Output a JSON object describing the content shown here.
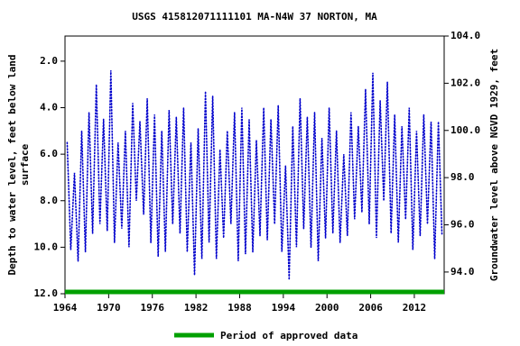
{
  "chart_data": {
    "type": "line",
    "title": "USGS 415812071111101 MA-N4W   37 NORTON, MA",
    "ylabel": [
      "Depth to water level, feet below land",
      "surface"
    ],
    "y2label": "Groundwater level above NGVD 1929, feet",
    "x": [
      1964.3,
      1964.8,
      1965.3,
      1965.8,
      1966.3,
      1966.8,
      1967.3,
      1967.8,
      1968.3,
      1968.8,
      1969.3,
      1969.8,
      1970.3,
      1970.8,
      1971.3,
      1971.8,
      1972.3,
      1972.8,
      1973.3,
      1973.8,
      1974.3,
      1974.8,
      1975.3,
      1975.8,
      1976.3,
      1976.8,
      1977.3,
      1977.8,
      1978.3,
      1978.8,
      1979.3,
      1979.8,
      1980.3,
      1980.8,
      1981.3,
      1981.8,
      1982.3,
      1982.8,
      1983.3,
      1983.8,
      1984.3,
      1984.8,
      1985.3,
      1985.8,
      1986.3,
      1986.8,
      1987.3,
      1987.8,
      1988.3,
      1988.8,
      1989.3,
      1989.8,
      1990.3,
      1990.8,
      1991.3,
      1991.8,
      1992.3,
      1992.8,
      1993.3,
      1993.8,
      1994.3,
      1994.8,
      1995.3,
      1995.8,
      1996.3,
      1996.8,
      1997.3,
      1997.8,
      1998.3,
      1998.8,
      1999.3,
      1999.8,
      2000.3,
      2000.8,
      2001.3,
      2001.8,
      2002.3,
      2002.8,
      2003.3,
      2003.8,
      2004.3,
      2004.8,
      2005.3,
      2005.8,
      2006.3,
      2006.8,
      2007.3,
      2007.8,
      2008.3,
      2008.8,
      2009.3,
      2009.8,
      2010.3,
      2010.8,
      2011.3,
      2011.8,
      2012.3,
      2012.8,
      2013.3,
      2013.8,
      2014.3,
      2014.8,
      2015.3,
      2015.8
    ],
    "series": [
      {
        "name": "Depth to water level",
        "color": "#0000cc",
        "values": [
          5.5,
          10.1,
          6.8,
          10.6,
          5.0,
          10.2,
          4.2,
          9.4,
          3.0,
          9.0,
          4.5,
          9.3,
          2.4,
          9.8,
          5.5,
          9.2,
          5.0,
          10.0,
          3.8,
          8.0,
          4.6,
          8.6,
          3.6,
          9.8,
          4.3,
          10.4,
          5.0,
          10.2,
          4.1,
          9.0,
          4.4,
          9.4,
          4.0,
          10.2,
          5.5,
          11.2,
          4.9,
          10.5,
          3.3,
          9.8,
          3.5,
          10.5,
          5.8,
          9.6,
          5.0,
          9.0,
          4.2,
          10.6,
          4.0,
          10.3,
          4.5,
          10.2,
          5.4,
          9.5,
          4.0,
          9.7,
          4.5,
          9.0,
          3.9,
          10.2,
          6.5,
          11.4,
          4.8,
          10.0,
          3.6,
          9.2,
          4.4,
          10.0,
          4.2,
          10.6,
          5.3,
          9.6,
          4.0,
          9.4,
          5.0,
          9.8,
          6.0,
          9.5,
          4.2,
          8.8,
          4.8,
          8.5,
          3.2,
          9.0,
          2.5,
          9.6,
          3.7,
          8.0,
          2.9,
          9.4,
          4.3,
          9.8,
          4.8,
          8.8,
          4.0,
          10.1,
          5.0,
          9.5,
          4.3,
          9.0,
          4.6,
          10.5,
          4.6,
          9.5
        ]
      }
    ],
    "xlim": [
      1964,
      2016.1
    ],
    "xticks": [
      1964,
      1970,
      1976,
      1982,
      1988,
      1994,
      2000,
      2006,
      2012
    ],
    "ylim": [
      0.92,
      12.0
    ],
    "y_inverted": true,
    "yticks": [
      {
        "value": 2,
        "label": "2.0"
      },
      {
        "value": 4,
        "label": "4.0"
      },
      {
        "value": 6,
        "label": "6.0"
      },
      {
        "value": 8,
        "label": "8.0"
      },
      {
        "value": 10,
        "label": "10.0"
      },
      {
        "value": 12,
        "label": "12.0"
      }
    ],
    "y2lim": [
      93.08,
      104.0
    ],
    "y2ticks": [
      {
        "value": 94,
        "label": "94.0"
      },
      {
        "value": 96,
        "label": "96.0"
      },
      {
        "value": 98,
        "label": "98.0"
      },
      {
        "value": 100,
        "label": "100.0"
      },
      {
        "value": 102,
        "label": "102.0"
      },
      {
        "value": 104,
        "label": "104.0"
      }
    ],
    "approved": {
      "name": "Period of approved data",
      "color": "#00a000",
      "range": [
        1964,
        2016.1
      ]
    },
    "grid": false
  }
}
